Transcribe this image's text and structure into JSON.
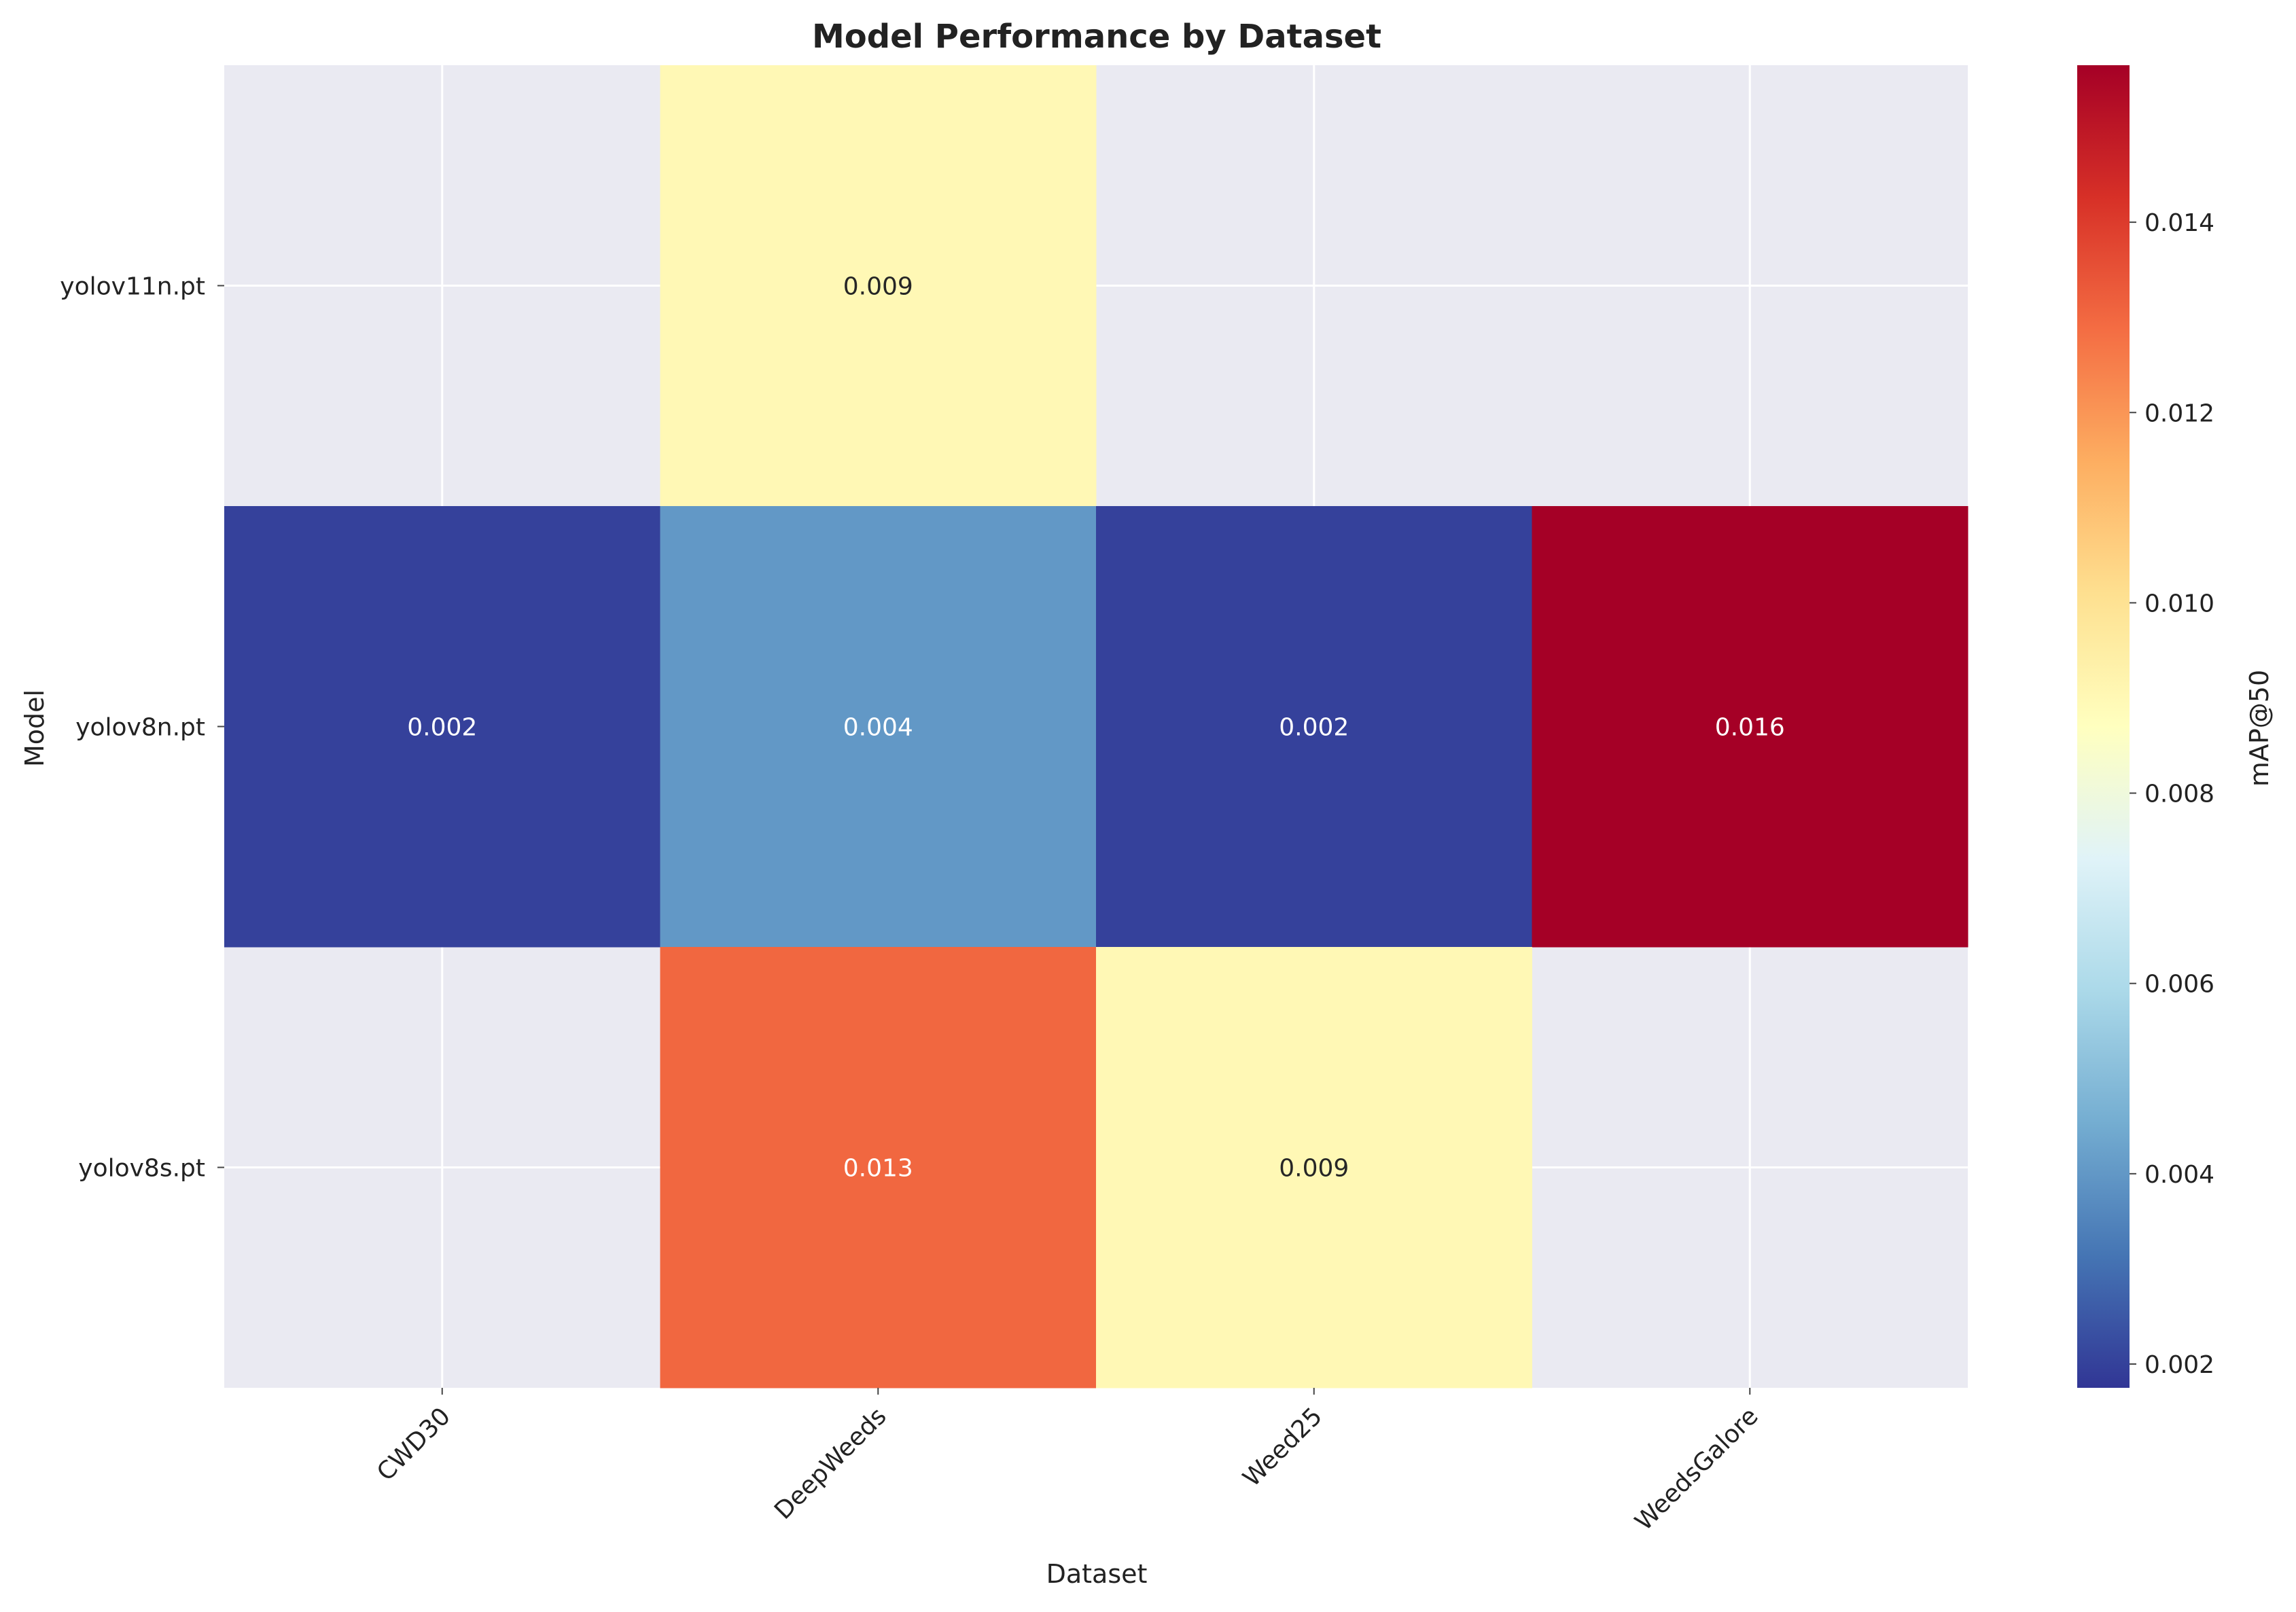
{
  "chart_data": {
    "type": "heatmap",
    "title": "Model Performance by Dataset",
    "xlabel": "Dataset",
    "ylabel": "Model",
    "x_categories": [
      "CWD30",
      "DeepWeeds",
      "Weed25",
      "WeedsGalore"
    ],
    "y_categories": [
      "yolov11n.pt",
      "yolov8n.pt",
      "yolov8s.pt"
    ],
    "values": [
      [
        null,
        0.009,
        null,
        null
      ],
      [
        0.002,
        0.004,
        0.002,
        0.016
      ],
      [
        null,
        0.013,
        0.009,
        null
      ]
    ],
    "cell_labels": [
      [
        "",
        "0.009",
        "",
        ""
      ],
      [
        "0.002",
        "0.004",
        "0.002",
        "0.016"
      ],
      [
        "",
        "0.013",
        "0.009",
        ""
      ]
    ],
    "x_tick_rotation_deg": 45,
    "missing_cell_color": "#eaeaf2",
    "grid": true,
    "grid_color": "#ffffff",
    "colormap": "RdYlBu_r",
    "colorbar": {
      "label": "mAP@50",
      "vmin": 0.00175,
      "vmax": 0.01565,
      "ticks": [
        0.002,
        0.004,
        0.006,
        0.008,
        0.01,
        0.012,
        0.014
      ],
      "tick_labels": [
        "0.002",
        "0.004",
        "0.006",
        "0.008",
        "0.010",
        "0.012",
        "0.014"
      ]
    },
    "colormap_stops": [
      "#313695",
      "#4575b4",
      "#74add1",
      "#abd9e9",
      "#e0f3f8",
      "#ffffbf",
      "#fee090",
      "#fdae61",
      "#f46d43",
      "#d73027",
      "#a50026"
    ]
  }
}
